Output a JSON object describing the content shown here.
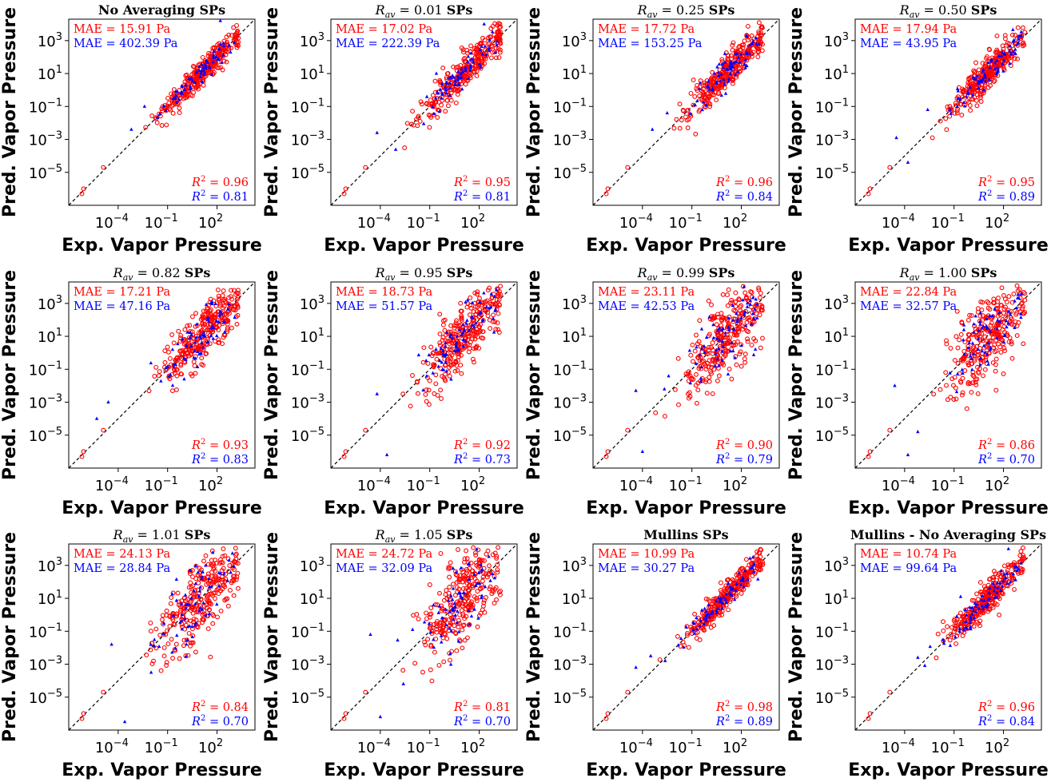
{
  "colors": {
    "train": "#ff0000",
    "test": "#0000ff",
    "parity": "#000000"
  },
  "chart_data": [
    {
      "type": "scatter",
      "title": "No Averaging SPs",
      "xlabel": "Exp. Vapor Pressure",
      "ylabel": "Pred. Vapor Pressure",
      "xscale": "log",
      "yscale": "log",
      "xlim": [
        1e-07,
        20000.0
      ],
      "ylim": [
        1e-07,
        20000.0
      ],
      "xticks": [
        "10^-4",
        "10^-1",
        "10^2"
      ],
      "yticks": [
        "10^-5",
        "10^-3",
        "10^-1",
        "10^1",
        "10^3"
      ],
      "series": [
        {
          "name": "train",
          "marker": "open-circle",
          "mae": "MAE = 15.91 Pa",
          "r2": "0.96"
        },
        {
          "name": "test",
          "marker": "triangle",
          "mae": "MAE = 402.39 Pa",
          "r2": "0.81"
        }
      ],
      "spread": 0.14,
      "outliers": [
        [
          -3.2,
          -2.4
        ],
        [
          2.2,
          4.2
        ],
        [
          -2.4,
          -1.0
        ]
      ]
    },
    {
      "type": "scatter",
      "title": "R_av = 0.01 SPs",
      "title_math": "0.01",
      "xlabel": "Exp. Vapor Pressure",
      "ylabel": "Pred. Vapor Pressure",
      "xscale": "log",
      "yscale": "log",
      "xlim": [
        1e-07,
        20000.0
      ],
      "ylim": [
        1e-07,
        20000.0
      ],
      "xticks": [
        "10^-4",
        "10^-1",
        "10^2"
      ],
      "yticks": [
        "10^-5",
        "10^-3",
        "10^-1",
        "10^1",
        "10^3"
      ],
      "series": [
        {
          "name": "train",
          "marker": "open-circle",
          "mae": "MAE = 17.02 Pa",
          "r2": "0.95"
        },
        {
          "name": "test",
          "marker": "triangle",
          "mae": "MAE = 222.39 Pa",
          "r2": "0.81"
        }
      ],
      "spread": 0.17,
      "outliers": [
        [
          -4.2,
          -2.6
        ],
        [
          2.3,
          4.0
        ],
        [
          -0.6,
          1.0
        ]
      ]
    },
    {
      "type": "scatter",
      "title": "R_av = 0.25 SPs",
      "title_math": "0.25",
      "xlabel": "Exp. Vapor Pressure",
      "ylabel": "Pred. Vapor Pressure",
      "xscale": "log",
      "yscale": "log",
      "xlim": [
        1e-07,
        20000.0
      ],
      "ylim": [
        1e-07,
        20000.0
      ],
      "xticks": [
        "10^-4",
        "10^-1",
        "10^2"
      ],
      "yticks": [
        "10^-5",
        "10^-3",
        "10^-1",
        "10^1",
        "10^3"
      ],
      "series": [
        {
          "name": "train",
          "marker": "open-circle",
          "mae": "MAE = 17.72 Pa",
          "r2": "0.96"
        },
        {
          "name": "test",
          "marker": "triangle",
          "mae": "MAE = 153.25 Pa",
          "r2": "0.84"
        }
      ],
      "spread": 0.17,
      "outliers": [
        [
          -3.4,
          -2.4
        ],
        [
          1.0,
          2.2
        ],
        [
          -2.5,
          -1.4
        ]
      ]
    },
    {
      "type": "scatter",
      "title": "R_av = 0.50 SPs",
      "title_math": "0.50",
      "xlabel": "Exp. Vapor Pressure",
      "ylabel": "Pred. Vapor Pressure",
      "xscale": "log",
      "yscale": "log",
      "xlim": [
        1e-07,
        20000.0
      ],
      "ylim": [
        1e-07,
        20000.0
      ],
      "xticks": [
        "10^-4",
        "10^-1",
        "10^2"
      ],
      "yticks": [
        "10^-5",
        "10^-3",
        "10^-1",
        "10^1",
        "10^3"
      ],
      "series": [
        {
          "name": "train",
          "marker": "open-circle",
          "mae": "MAE = 17.94 Pa",
          "r2": "0.95"
        },
        {
          "name": "test",
          "marker": "triangle",
          "mae": "MAE = 43.95 Pa",
          "r2": "0.89"
        }
      ],
      "spread": 0.18,
      "outliers": [
        [
          -4.5,
          -2.9
        ],
        [
          -3.8,
          -4.4
        ],
        [
          -2.6,
          -1.2
        ]
      ]
    },
    {
      "type": "scatter",
      "title": "R_av = 0.82 SPs",
      "title_math": "0.82",
      "xlabel": "Exp. Vapor Pressure",
      "ylabel": "Pred. Vapor Pressure",
      "xscale": "log",
      "yscale": "log",
      "xlim": [
        1e-07,
        20000.0
      ],
      "ylim": [
        1e-07,
        20000.0
      ],
      "xticks": [
        "10^-4",
        "10^-1",
        "10^2"
      ],
      "yticks": [
        "10^-5",
        "10^-3",
        "10^-1",
        "10^1",
        "10^3"
      ],
      "series": [
        {
          "name": "train",
          "marker": "open-circle",
          "mae": "MAE = 17.21 Pa",
          "r2": "0.93"
        },
        {
          "name": "test",
          "marker": "triangle",
          "mae": "MAE = 47.16 Pa",
          "r2": "0.83"
        }
      ],
      "spread": 0.25,
      "outliers": [
        [
          -4.6,
          -3.0
        ],
        [
          -5.3,
          -4.0
        ],
        [
          1.7,
          3.1
        ]
      ]
    },
    {
      "type": "scatter",
      "title": "R_av = 0.95 SPs",
      "title_math": "0.95",
      "xlabel": "Exp. Vapor Pressure",
      "ylabel": "Pred. Vapor Pressure",
      "xscale": "log",
      "yscale": "log",
      "xlim": [
        1e-07,
        20000.0
      ],
      "ylim": [
        1e-07,
        20000.0
      ],
      "xticks": [
        "10^-4",
        "10^-1",
        "10^2"
      ],
      "yticks": [
        "10^-5",
        "10^-3",
        "10^-1",
        "10^1",
        "10^3"
      ],
      "series": [
        {
          "name": "train",
          "marker": "open-circle",
          "mae": "MAE = 18.73 Pa",
          "r2": "0.92"
        },
        {
          "name": "test",
          "marker": "triangle",
          "mae": "MAE = 51.57 Pa",
          "r2": "0.73"
        }
      ],
      "spread": 0.3,
      "outliers": [
        [
          -3.6,
          -6.2
        ],
        [
          -4.2,
          -2.5
        ],
        [
          1.3,
          3.2
        ]
      ]
    },
    {
      "type": "scatter",
      "title": "R_av = 0.99 SPs",
      "title_math": "0.99",
      "xlabel": "Exp. Vapor Pressure",
      "ylabel": "Pred. Vapor Pressure",
      "xscale": "log",
      "yscale": "log",
      "xlim": [
        1e-07,
        20000.0
      ],
      "ylim": [
        1e-07,
        20000.0
      ],
      "xticks": [
        "10^-4",
        "10^-1",
        "10^2"
      ],
      "yticks": [
        "10^-5",
        "10^-3",
        "10^-1",
        "10^1",
        "10^3"
      ],
      "series": [
        {
          "name": "train",
          "marker": "open-circle",
          "mae": "MAE = 23.11 Pa",
          "r2": "0.90"
        },
        {
          "name": "test",
          "marker": "triangle",
          "mae": "MAE = 42.53 Pa",
          "r2": "0.79"
        }
      ],
      "spread": 0.36,
      "outliers": [
        [
          -4.0,
          -6.0
        ],
        [
          -4.4,
          -2.3
        ],
        [
          2.1,
          3.2
        ]
      ]
    },
    {
      "type": "scatter",
      "title": "R_av = 1.00 SPs",
      "title_math": "1.00",
      "xlabel": "Exp. Vapor Pressure",
      "ylabel": "Pred. Vapor Pressure",
      "xscale": "log",
      "yscale": "log",
      "xlim": [
        1e-07,
        20000.0
      ],
      "ylim": [
        1e-07,
        20000.0
      ],
      "xticks": [
        "10^-4",
        "10^-1",
        "10^2"
      ],
      "yticks": [
        "10^-5",
        "10^-3",
        "10^-1",
        "10^1",
        "10^3"
      ],
      "series": [
        {
          "name": "train",
          "marker": "open-circle",
          "mae": "MAE = 22.84 Pa",
          "r2": "0.86"
        },
        {
          "name": "test",
          "marker": "triangle",
          "mae": "MAE = 32.57 Pa",
          "r2": "0.70"
        }
      ],
      "spread": 0.38,
      "outliers": [
        [
          -3.8,
          -6.2
        ],
        [
          -4.6,
          -2.0
        ],
        [
          -3.2,
          -4.8
        ]
      ]
    },
    {
      "type": "scatter",
      "title": "R_av = 1.01 SPs",
      "title_math": "1.01",
      "xlabel": "Exp. Vapor Pressure",
      "ylabel": "Pred. Vapor Pressure",
      "xscale": "log",
      "yscale": "log",
      "xlim": [
        1e-07,
        20000.0
      ],
      "ylim": [
        1e-07,
        20000.0
      ],
      "xticks": [
        "10^-4",
        "10^-1",
        "10^2"
      ],
      "yticks": [
        "10^-5",
        "10^-3",
        "10^-1",
        "10^1",
        "10^3"
      ],
      "series": [
        {
          "name": "train",
          "marker": "open-circle",
          "mae": "MAE = 24.13 Pa",
          "r2": "0.84"
        },
        {
          "name": "test",
          "marker": "triangle",
          "mae": "MAE = 28.84 Pa",
          "r2": "0.70"
        }
      ],
      "spread": 0.4,
      "outliers": [
        [
          -3.6,
          -6.5
        ],
        [
          -4.4,
          -1.8
        ],
        [
          -2.0,
          -3.5
        ]
      ]
    },
    {
      "type": "scatter",
      "title": "R_av = 1.05 SPs",
      "title_math": "1.05",
      "xlabel": "Exp. Vapor Pressure",
      "ylabel": "Pred. Vapor Pressure",
      "xscale": "log",
      "yscale": "log",
      "xlim": [
        1e-07,
        20000.0
      ],
      "ylim": [
        1e-07,
        20000.0
      ],
      "xticks": [
        "10^-4",
        "10^-1",
        "10^2"
      ],
      "yticks": [
        "10^-5",
        "10^-3",
        "10^-1",
        "10^1",
        "10^3"
      ],
      "series": [
        {
          "name": "train",
          "marker": "open-circle",
          "mae": "MAE = 24.72 Pa",
          "r2": "0.81"
        },
        {
          "name": "test",
          "marker": "triangle",
          "mae": "MAE = 32.09 Pa",
          "r2": "0.70"
        }
      ],
      "spread": 0.42,
      "outliers": [
        [
          -4.0,
          -6.2
        ],
        [
          -4.6,
          -1.2
        ],
        [
          -2.6,
          -4.2
        ]
      ]
    },
    {
      "type": "scatter",
      "title": "Mullins SPs",
      "xlabel": "Exp. Vapor Pressure",
      "ylabel": "Pred. Vapor Pressure",
      "xscale": "log",
      "yscale": "log",
      "xlim": [
        1e-07,
        20000.0
      ],
      "ylim": [
        1e-07,
        20000.0
      ],
      "xticks": [
        "10^-4",
        "10^-1",
        "10^2"
      ],
      "yticks": [
        "10^-5",
        "10^-3",
        "10^-1",
        "10^1",
        "10^3"
      ],
      "series": [
        {
          "name": "train",
          "marker": "open-circle",
          "mae": "MAE = 10.99 Pa",
          "r2": "0.98"
        },
        {
          "name": "test",
          "marker": "triangle",
          "mae": "MAE = 30.27 Pa",
          "r2": "0.89"
        }
      ],
      "spread": 0.13,
      "outliers": [
        [
          -4.4,
          -3.2
        ],
        [
          -3.5,
          -2.5
        ],
        [
          1.2,
          1.9
        ]
      ]
    },
    {
      "type": "scatter",
      "title": "Mullins - No Averaging SPs",
      "xlabel": "Exp. Vapor Pressure",
      "ylabel": "Pred. Vapor Pressure",
      "xscale": "log",
      "yscale": "log",
      "xlim": [
        1e-07,
        20000.0
      ],
      "ylim": [
        1e-07,
        20000.0
      ],
      "xticks": [
        "10^-4",
        "10^-1",
        "10^2"
      ],
      "yticks": [
        "10^-5",
        "10^-3",
        "10^-1",
        "10^1",
        "10^3"
      ],
      "series": [
        {
          "name": "train",
          "marker": "open-circle",
          "mae": "MAE = 10.74 Pa",
          "r2": "0.96"
        },
        {
          "name": "test",
          "marker": "triangle",
          "mae": "MAE = 99.64 Pa",
          "r2": "0.84"
        }
      ],
      "spread": 0.15,
      "outliers": [
        [
          -3.2,
          -2.6
        ],
        [
          2.3,
          4.0
        ],
        [
          -0.6,
          1.1
        ]
      ]
    }
  ]
}
